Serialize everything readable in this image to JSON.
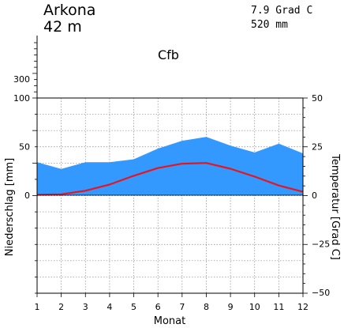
{
  "station": {
    "name": "Arkona",
    "elevation": "42 m"
  },
  "summary": {
    "mean_temp": "7.9 Grad C",
    "annual_precip": "520 mm"
  },
  "climate_class": "Cfb",
  "chart_data": {
    "type": "line",
    "xlabel": "Monat",
    "ylabel_left": "Niederschlag [mm]",
    "ylabel_right": "Temperatur [Grad C]",
    "x": [
      1,
      2,
      3,
      4,
      5,
      6,
      7,
      8,
      9,
      10,
      11,
      12
    ],
    "x_ticks": [
      "1",
      "2",
      "3",
      "4",
      "5",
      "6",
      "7",
      "8",
      "9",
      "10",
      "11",
      "12"
    ],
    "left_ticks": [
      "0",
      "50",
      "100",
      "300"
    ],
    "right_ticks": [
      "50",
      "25",
      "0",
      "−25",
      "−50"
    ],
    "ylim_left_lower": [
      0,
      100
    ],
    "ylim_left_upper": [
      100,
      300
    ],
    "ylim_right": [
      -50,
      50
    ],
    "series": [
      {
        "values": [
          34,
          27,
          34,
          34,
          37,
          48,
          56,
          60,
          51,
          44,
          53,
          43
        ],
        "color": "#3399ff"
      },
      {
        "values": [
          0.3,
          0.5,
          2.3,
          5.5,
          10.0,
          14.0,
          16.2,
          16.6,
          13.6,
          9.6,
          5.0,
          1.8
        ],
        "color": "#e8141e"
      }
    ]
  }
}
